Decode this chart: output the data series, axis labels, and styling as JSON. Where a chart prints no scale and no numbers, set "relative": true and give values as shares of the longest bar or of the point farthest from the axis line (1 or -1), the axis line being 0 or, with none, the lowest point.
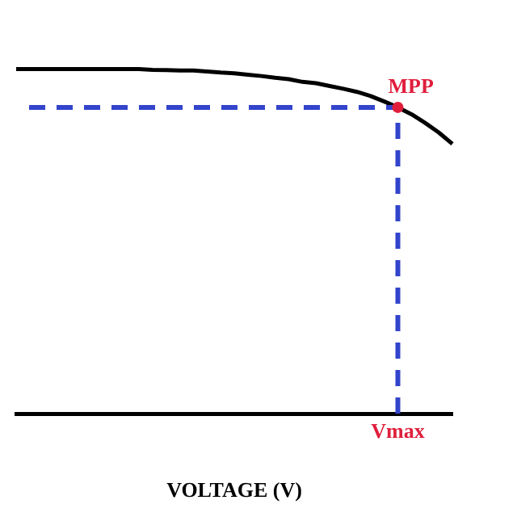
{
  "chart_data": {
    "type": "line",
    "relative": true,
    "xlabel": "VOLTAGE (V)",
    "legend": false,
    "grid": false,
    "marker": "none",
    "line_style": "solid",
    "categories": [
      null,
      null,
      null,
      null,
      null,
      null,
      null,
      null,
      null,
      null,
      null,
      null,
      null,
      null,
      null,
      null,
      null,
      null,
      null,
      null,
      null,
      null,
      null,
      null,
      null,
      null,
      null,
      null,
      null,
      null,
      null,
      null,
      null
    ],
    "series": [
      {
        "color": "#000000",
        "values": [
          1,
          1,
          1,
          1,
          1,
          1,
          1,
          1,
          1,
          1,
          0.998,
          0.997,
          0.996,
          0.996,
          0.993,
          0.99,
          0.988,
          0.984,
          0.98,
          0.975,
          0.971,
          0.963,
          0.959,
          0.951,
          0.943,
          0.934,
          0.922,
          0.906,
          0.889,
          0.869,
          0.844,
          0.816,
          0.783
        ]
      }
    ],
    "ref_lines": [
      {
        "axis": "y",
        "value": 0.889,
        "color": "#3344cc",
        "line_style": "dashed"
      }
    ],
    "annotations": [
      {
        "text": "MPP",
        "y": 0.889
      },
      "Vmax"
    ]
  }
}
